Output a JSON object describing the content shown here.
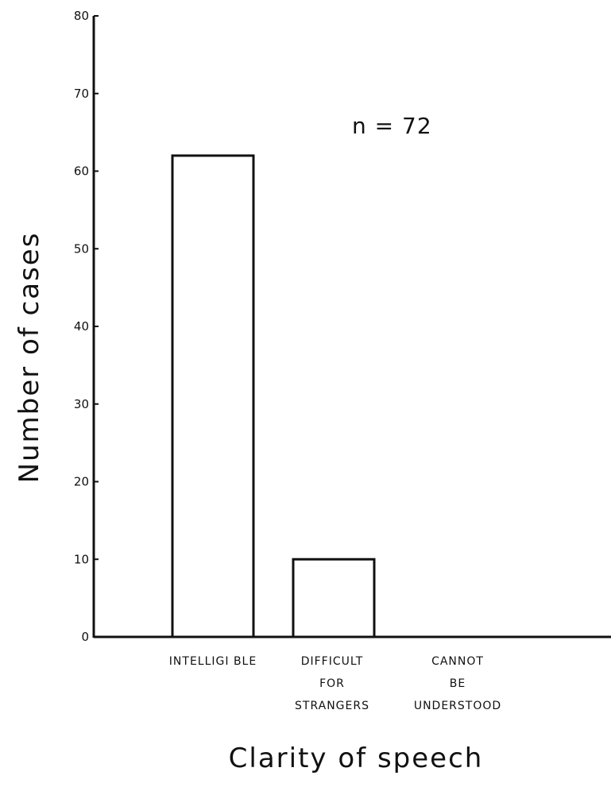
{
  "chart_data": {
    "type": "bar",
    "title": "",
    "xlabel": "Clarity of speech",
    "ylabel": "Number of cases",
    "ylim": [
      0,
      80
    ],
    "yticks": [
      "0",
      "10",
      "20",
      "30",
      "40",
      "50",
      "60",
      "70",
      "80"
    ],
    "categories": [
      [
        "INTELLIGI BLE"
      ],
      [
        "DIFFICULT",
        "FOR",
        "STRANGERS"
      ],
      [
        "CANNOT",
        "BE",
        "UNDERSTOOD"
      ]
    ],
    "values": [
      62,
      10,
      0
    ],
    "annotation": "n =  72",
    "colors": {
      "bar_fill": "#ffffff",
      "bar_stroke": "#111111",
      "axis": "#111111"
    },
    "grid": false,
    "legend": "none"
  }
}
